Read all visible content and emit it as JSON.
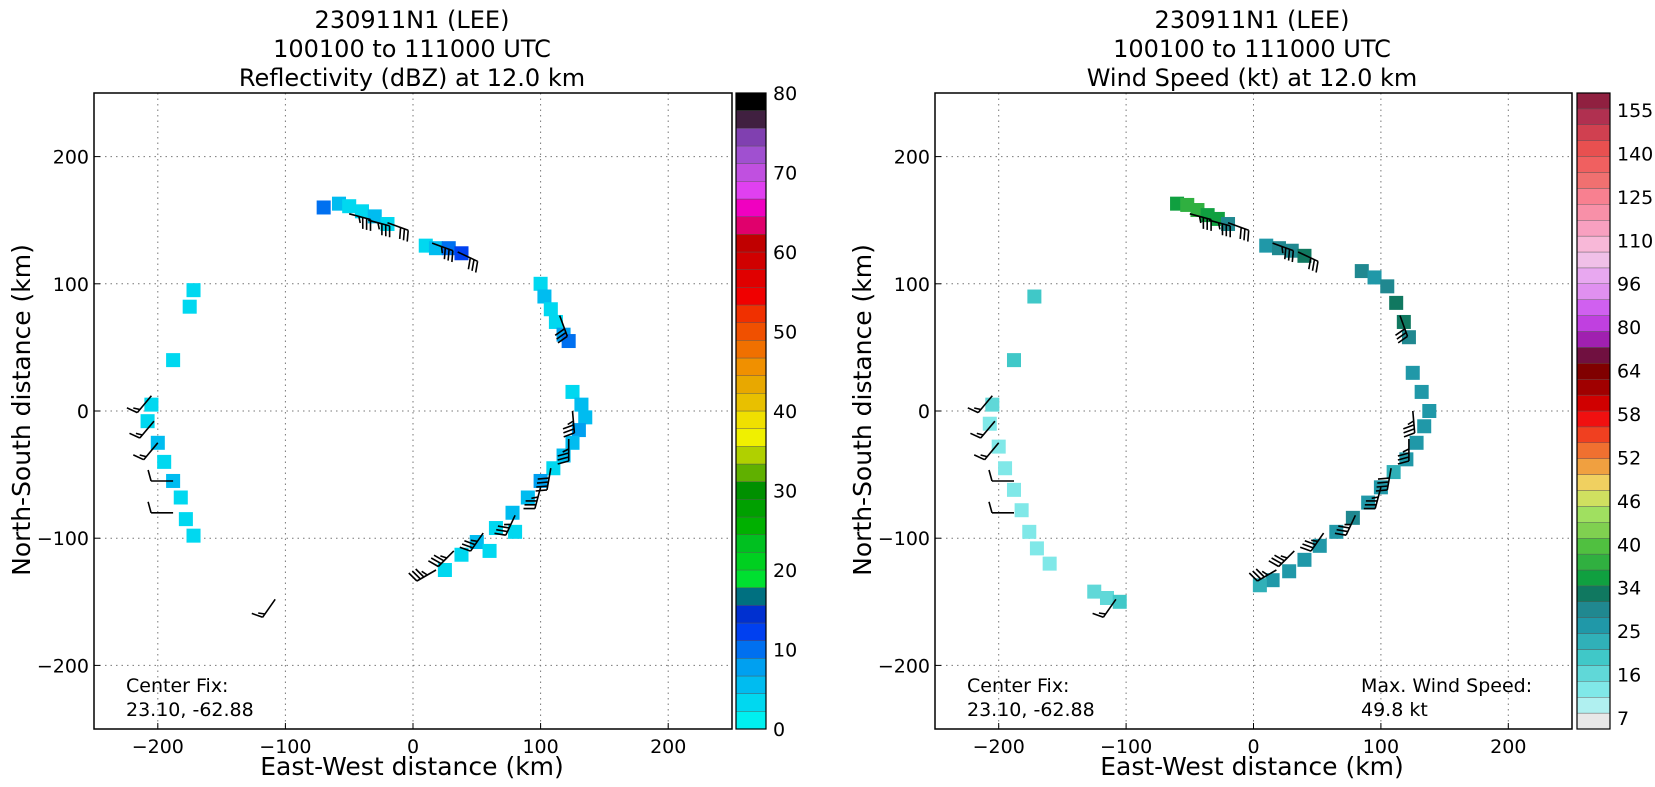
{
  "chart_data": [
    {
      "type": "heatmap",
      "title": [
        "230911N1 (LEE)",
        "100100 to 111000 UTC",
        "Reflectivity (dBZ) at 12.0 km"
      ],
      "xlabel": "East-West distance (km)",
      "ylabel": "North-South distance (km)",
      "xlim": [
        -250,
        250
      ],
      "ylim": [
        -250,
        250
      ],
      "xticks": [
        -200,
        -100,
        0,
        100,
        200
      ],
      "yticks": [
        -200,
        -100,
        0,
        100,
        200
      ],
      "grid": true,
      "annotations": {
        "center_fix_label": "Center Fix:",
        "center_fix_value": "23.10, -62.88"
      },
      "colorbar": {
        "range": [
          0,
          80
        ],
        "tick_labels": [
          "80",
          "70",
          "60",
          "50",
          "40",
          "30",
          "20",
          "10",
          "0"
        ],
        "colors": [
          "#00f0f0",
          "#00d8f0",
          "#00bcf0",
          "#00a0f0",
          "#0070f0",
          "#0040f0",
          "#0030d0",
          "#007080",
          "#00e030",
          "#00d020",
          "#00c020",
          "#00b000",
          "#00a000",
          "#009000",
          "#60b000",
          "#b0d000",
          "#f0f000",
          "#f0e000",
          "#e8c000",
          "#e8a800",
          "#f09000",
          "#f07000",
          "#f05000",
          "#f03000",
          "#f00000",
          "#e00000",
          "#d00000",
          "#c00000",
          "#e0006c",
          "#f000c0",
          "#e040f0",
          "#c050e0",
          "#a050d0",
          "#8040b0",
          "#402040",
          "#000000"
        ]
      },
      "cells": [
        {
          "x": -70,
          "y": 160,
          "v": 9
        },
        {
          "x": -58,
          "y": 163,
          "v": 5
        },
        {
          "x": -50,
          "y": 161,
          "v": 3
        },
        {
          "x": -40,
          "y": 157,
          "v": 4
        },
        {
          "x": -30,
          "y": 153,
          "v": 6
        },
        {
          "x": -20,
          "y": 147,
          "v": 4
        },
        {
          "x": 10,
          "y": 130,
          "v": 4
        },
        {
          "x": 18,
          "y": 128,
          "v": 6
        },
        {
          "x": 28,
          "y": 128,
          "v": 9
        },
        {
          "x": 38,
          "y": 124,
          "v": 12
        },
        {
          "x": 100,
          "y": 100,
          "v": 4
        },
        {
          "x": 103,
          "y": 90,
          "v": 5
        },
        {
          "x": 108,
          "y": 80,
          "v": 3
        },
        {
          "x": 112,
          "y": 70,
          "v": 4
        },
        {
          "x": 118,
          "y": 60,
          "v": 8
        },
        {
          "x": 122,
          "y": 55,
          "v": 11
        },
        {
          "x": 125,
          "y": 15,
          "v": 4
        },
        {
          "x": 132,
          "y": 5,
          "v": 6
        },
        {
          "x": 135,
          "y": -5,
          "v": 5
        },
        {
          "x": 130,
          "y": -15,
          "v": 7
        },
        {
          "x": 125,
          "y": -25,
          "v": 5
        },
        {
          "x": 118,
          "y": -35,
          "v": 6
        },
        {
          "x": 110,
          "y": -45,
          "v": 4
        },
        {
          "x": 100,
          "y": -55,
          "v": 7
        },
        {
          "x": 90,
          "y": -68,
          "v": 5
        },
        {
          "x": 78,
          "y": -80,
          "v": 6
        },
        {
          "x": 65,
          "y": -92,
          "v": 4
        },
        {
          "x": 50,
          "y": -103,
          "v": 5
        },
        {
          "x": 38,
          "y": -113,
          "v": 4
        },
        {
          "x": 25,
          "y": -125,
          "v": 3
        },
        {
          "x": 80,
          "y": -95,
          "v": 3
        },
        {
          "x": 60,
          "y": -110,
          "v": 4
        },
        {
          "x": -172,
          "y": 95,
          "v": 3
        },
        {
          "x": -175,
          "y": 82,
          "v": 3
        },
        {
          "x": -188,
          "y": 40,
          "v": 4
        },
        {
          "x": -205,
          "y": 5,
          "v": 4
        },
        {
          "x": -208,
          "y": -8,
          "v": 3
        },
        {
          "x": -200,
          "y": -25,
          "v": 5
        },
        {
          "x": -195,
          "y": -40,
          "v": 4
        },
        {
          "x": -188,
          "y": -55,
          "v": 6
        },
        {
          "x": -182,
          "y": -68,
          "v": 4
        },
        {
          "x": -178,
          "y": -85,
          "v": 3
        },
        {
          "x": -172,
          "y": -98,
          "v": 3
        }
      ],
      "barbs": [
        {
          "x": -50,
          "y": 155,
          "dir": 105,
          "kt": 35
        },
        {
          "x": -35,
          "y": 150,
          "dir": 105,
          "kt": 35
        },
        {
          "x": -20,
          "y": 148,
          "dir": 110,
          "kt": 30
        },
        {
          "x": 15,
          "y": 132,
          "dir": 110,
          "kt": 35
        },
        {
          "x": 35,
          "y": 125,
          "dir": 115,
          "kt": 30
        },
        {
          "x": 115,
          "y": 75,
          "dir": 160,
          "kt": 30
        },
        {
          "x": -205,
          "y": 12,
          "dir": 220,
          "kt": 15
        },
        {
          "x": -203,
          "y": -8,
          "dir": 220,
          "kt": 15
        },
        {
          "x": -200,
          "y": -25,
          "dir": 220,
          "kt": 15
        },
        {
          "x": -188,
          "y": -55,
          "dir": 270,
          "kt": 10
        },
        {
          "x": -188,
          "y": -80,
          "dir": 270,
          "kt": 10
        },
        {
          "x": -108,
          "y": -148,
          "dir": 215,
          "kt": 15
        },
        {
          "x": 125,
          "y": 0,
          "dir": 175,
          "kt": 35
        },
        {
          "x": 122,
          "y": -22,
          "dir": 180,
          "kt": 35
        },
        {
          "x": 108,
          "y": -45,
          "dir": 190,
          "kt": 40
        },
        {
          "x": 100,
          "y": -60,
          "dir": 195,
          "kt": 35
        },
        {
          "x": 80,
          "y": -82,
          "dir": 205,
          "kt": 35
        },
        {
          "x": 55,
          "y": -96,
          "dir": 215,
          "kt": 35
        },
        {
          "x": 32,
          "y": -110,
          "dir": 225,
          "kt": 35
        },
        {
          "x": 18,
          "y": -125,
          "dir": 240,
          "kt": 35
        }
      ]
    },
    {
      "type": "heatmap",
      "title": [
        "230911N1 (LEE)",
        "100100 to 111000 UTC",
        "Wind Speed (kt) at 12.0 km"
      ],
      "xlabel": "East-West distance (km)",
      "ylabel": "North-South distance (km)",
      "xlim": [
        -250,
        250
      ],
      "ylim": [
        -250,
        250
      ],
      "xticks": [
        -200,
        -100,
        0,
        100,
        200
      ],
      "yticks": [
        -200,
        -100,
        0,
        100,
        200
      ],
      "grid": true,
      "annotations": {
        "center_fix_label": "Center Fix:",
        "center_fix_value": "23.10, -62.88",
        "max_wind_label": "Max. Wind Speed:",
        "max_wind_value": "49.8 kt"
      },
      "colorbar": {
        "range": [
          7,
          160
        ],
        "tick_labels": [
          "155",
          "140",
          "125",
          "110",
          "96",
          "80",
          "64",
          "58",
          "52",
          "46",
          "40",
          "34",
          "25",
          "16",
          "7"
        ],
        "colors": [
          "#e8e8e8",
          "#b0f0f0",
          "#80e8e8",
          "#60d8d8",
          "#40c8c8",
          "#30b0b8",
          "#2098a8",
          "#208890",
          "#107860",
          "#10a040",
          "#30b040",
          "#50c040",
          "#80d050",
          "#a0e060",
          "#d0e060",
          "#f0d060",
          "#f0a040",
          "#f07030",
          "#f04020",
          "#f01010",
          "#d00000",
          "#a00000",
          "#800000",
          "#701040",
          "#a020b0",
          "#c040e0",
          "#d060f0",
          "#e090f0",
          "#e8a8f0",
          "#f0c0e8",
          "#f8b8d8",
          "#f8a0c0",
          "#f890a8",
          "#f88090",
          "#f07070",
          "#f06060",
          "#e85050",
          "#d04050",
          "#b03050",
          "#902040"
        ]
      },
      "cells": [
        {
          "x": -60,
          "y": 163,
          "v": 45
        },
        {
          "x": -52,
          "y": 162,
          "v": 48
        },
        {
          "x": -44,
          "y": 158,
          "v": 46
        },
        {
          "x": -36,
          "y": 154,
          "v": 44
        },
        {
          "x": -28,
          "y": 151,
          "v": 42
        },
        {
          "x": -20,
          "y": 147,
          "v": 36
        },
        {
          "x": 10,
          "y": 130,
          "v": 30
        },
        {
          "x": 20,
          "y": 128,
          "v": 34
        },
        {
          "x": 30,
          "y": 126,
          "v": 36
        },
        {
          "x": 40,
          "y": 122,
          "v": 38
        },
        {
          "x": 85,
          "y": 110,
          "v": 34
        },
        {
          "x": 95,
          "y": 105,
          "v": 32
        },
        {
          "x": 105,
          "y": 98,
          "v": 36
        },
        {
          "x": 112,
          "y": 85,
          "v": 40
        },
        {
          "x": 118,
          "y": 70,
          "v": 38
        },
        {
          "x": 122,
          "y": 58,
          "v": 36
        },
        {
          "x": 125,
          "y": 30,
          "v": 33
        },
        {
          "x": 132,
          "y": 15,
          "v": 32
        },
        {
          "x": 138,
          "y": 0,
          "v": 30
        },
        {
          "x": 134,
          "y": -12,
          "v": 32
        },
        {
          "x": 128,
          "y": -25,
          "v": 30
        },
        {
          "x": 120,
          "y": -38,
          "v": 33
        },
        {
          "x": 110,
          "y": -48,
          "v": 28
        },
        {
          "x": 100,
          "y": -60,
          "v": 30
        },
        {
          "x": 90,
          "y": -72,
          "v": 32
        },
        {
          "x": 78,
          "y": -84,
          "v": 34
        },
        {
          "x": 65,
          "y": -95,
          "v": 33
        },
        {
          "x": 52,
          "y": -106,
          "v": 32
        },
        {
          "x": 40,
          "y": -117,
          "v": 30
        },
        {
          "x": 28,
          "y": -126,
          "v": 32
        },
        {
          "x": 15,
          "y": -133,
          "v": 30
        },
        {
          "x": 5,
          "y": -137,
          "v": 28
        },
        {
          "x": -172,
          "y": 90,
          "v": 26
        },
        {
          "x": -188,
          "y": 40,
          "v": 24
        },
        {
          "x": -205,
          "y": 5,
          "v": 20
        },
        {
          "x": -207,
          "y": -10,
          "v": 18
        },
        {
          "x": -200,
          "y": -28,
          "v": 17
        },
        {
          "x": -195,
          "y": -45,
          "v": 16
        },
        {
          "x": -188,
          "y": -62,
          "v": 17
        },
        {
          "x": -182,
          "y": -78,
          "v": 16
        },
        {
          "x": -176,
          "y": -95,
          "v": 16
        },
        {
          "x": -170,
          "y": -108,
          "v": 15
        },
        {
          "x": -160,
          "y": -120,
          "v": 15
        },
        {
          "x": -125,
          "y": -142,
          "v": 20
        },
        {
          "x": -115,
          "y": -147,
          "v": 22
        },
        {
          "x": -105,
          "y": -150,
          "v": 23
        }
      ],
      "barbs": [
        {
          "x": -50,
          "y": 155,
          "dir": 105,
          "kt": 35
        },
        {
          "x": -35,
          "y": 150,
          "dir": 105,
          "kt": 35
        },
        {
          "x": -20,
          "y": 148,
          "dir": 110,
          "kt": 30
        },
        {
          "x": 15,
          "y": 132,
          "dir": 110,
          "kt": 35
        },
        {
          "x": 35,
          "y": 125,
          "dir": 115,
          "kt": 30
        },
        {
          "x": 115,
          "y": 75,
          "dir": 160,
          "kt": 30
        },
        {
          "x": -205,
          "y": 12,
          "dir": 220,
          "kt": 15
        },
        {
          "x": -203,
          "y": -8,
          "dir": 220,
          "kt": 15
        },
        {
          "x": -200,
          "y": -25,
          "dir": 220,
          "kt": 15
        },
        {
          "x": -188,
          "y": -55,
          "dir": 270,
          "kt": 10
        },
        {
          "x": -188,
          "y": -80,
          "dir": 270,
          "kt": 10
        },
        {
          "x": -108,
          "y": -148,
          "dir": 215,
          "kt": 15
        },
        {
          "x": 125,
          "y": 0,
          "dir": 175,
          "kt": 35
        },
        {
          "x": 122,
          "y": -22,
          "dir": 180,
          "kt": 35
        },
        {
          "x": 108,
          "y": -45,
          "dir": 190,
          "kt": 40
        },
        {
          "x": 100,
          "y": -60,
          "dir": 195,
          "kt": 35
        },
        {
          "x": 80,
          "y": -82,
          "dir": 205,
          "kt": 35
        },
        {
          "x": 55,
          "y": -96,
          "dir": 215,
          "kt": 35
        },
        {
          "x": 32,
          "y": -110,
          "dir": 225,
          "kt": 35
        },
        {
          "x": 18,
          "y": -125,
          "dir": 240,
          "kt": 35
        }
      ]
    }
  ]
}
